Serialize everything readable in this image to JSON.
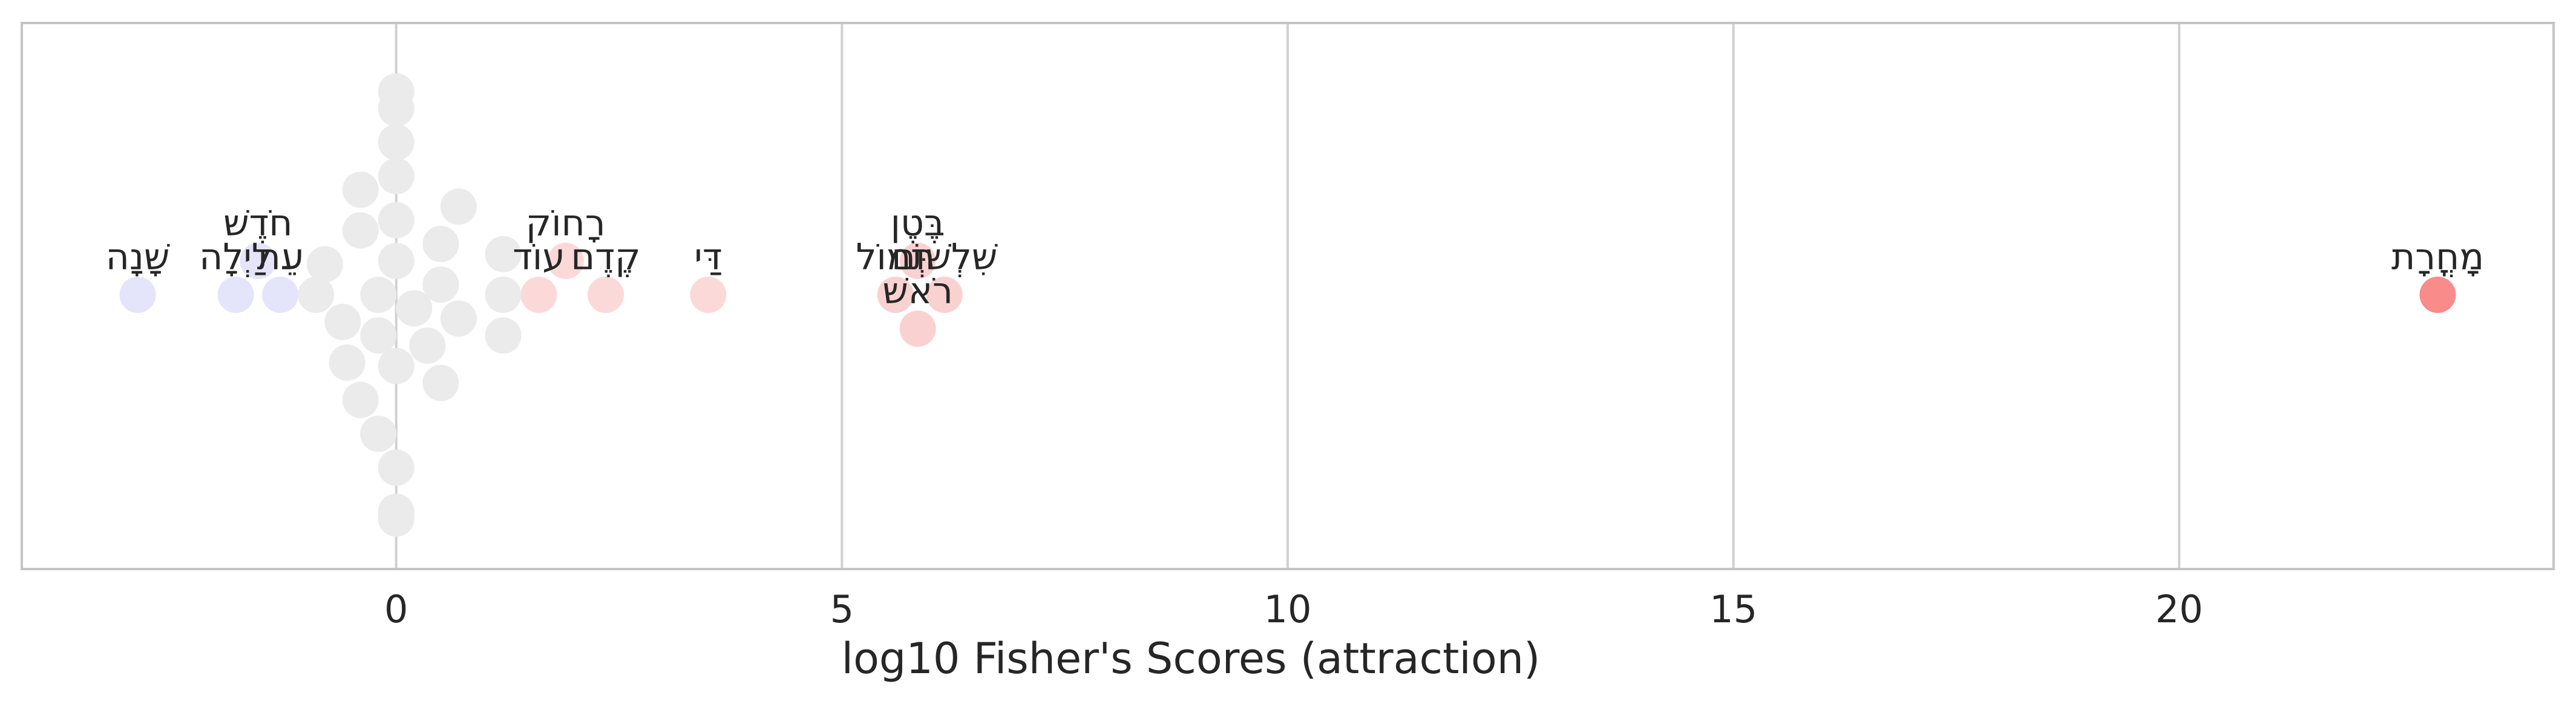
{
  "chart_data": {
    "type": "scatter",
    "subtype": "swarm",
    "title": "",
    "xlabel": "log10 Fisher's Scores (attraction)",
    "ylabel": "",
    "xlim": [
      -4.2,
      24.2
    ],
    "xticks": [
      0,
      5,
      10,
      15,
      20
    ],
    "grid": "vertical",
    "colors": {
      "neutral": "#ebebeb",
      "repulsion_light": "#e4e4fb",
      "attraction_light": "#fcd9d9",
      "attraction_mid": "#fad1d1",
      "attraction_strong": "#f98b8b",
      "grid": "#d0d0d0",
      "frame": "#c4c4c4"
    },
    "points": [
      {
        "x": -2.9,
        "band": 0,
        "color": "repulsion_light",
        "label": "שָׁנָה"
      },
      {
        "x": -1.8,
        "band": 0,
        "color": "repulsion_light",
        "label": "לַיְלָה"
      },
      {
        "x": -1.55,
        "band": 1,
        "color": "repulsion_light",
        "label": "חֹדֶשׁ"
      },
      {
        "x": -1.3,
        "band": 0,
        "color": "repulsion_light",
        "label": "עֵת"
      },
      {
        "x": 1.6,
        "band": 0,
        "color": "attraction_light",
        "label": "עוֹד"
      },
      {
        "x": 1.9,
        "band": 1,
        "color": "attraction_light",
        "label": "רָחוֹק"
      },
      {
        "x": 2.35,
        "band": 0,
        "color": "attraction_light",
        "label": "קֶדֶם"
      },
      {
        "x": 3.5,
        "band": 0,
        "color": "attraction_light",
        "label": "דַּי"
      },
      {
        "x": 5.6,
        "band": 0,
        "color": "attraction_mid",
        "label": "תְּמוֹל"
      },
      {
        "x": 5.85,
        "band": 1,
        "color": "attraction_mid",
        "label": "בֶּטֶן"
      },
      {
        "x": 5.85,
        "band": -1,
        "color": "attraction_mid",
        "label": "רֹאשׁ"
      },
      {
        "x": 6.15,
        "band": 0,
        "color": "attraction_mid",
        "label": "שִׁלְשׁוֹם"
      },
      {
        "x": 22.9,
        "band": 0,
        "color": "attraction_strong",
        "label": "מָחֳרָת"
      },
      {
        "x": 0,
        "band": 6,
        "color": "neutral",
        "label": ""
      },
      {
        "x": 0,
        "band": 5.5,
        "color": "neutral",
        "label": ""
      },
      {
        "x": 0,
        "band": 4.5,
        "color": "neutral",
        "label": ""
      },
      {
        "x": 0,
        "band": 3.5,
        "color": "neutral",
        "label": ""
      },
      {
        "x": 0,
        "band": 2.2,
        "color": "neutral",
        "label": ""
      },
      {
        "x": 0,
        "band": 1,
        "color": "neutral",
        "label": ""
      },
      {
        "x": -0.2,
        "band": 0,
        "color": "neutral",
        "label": ""
      },
      {
        "x": -0.2,
        "band": -1.2,
        "color": "neutral",
        "label": ""
      },
      {
        "x": 0,
        "band": -2.1,
        "color": "neutral",
        "label": ""
      },
      {
        "x": -0.2,
        "band": -4.1,
        "color": "neutral",
        "label": ""
      },
      {
        "x": 0,
        "band": -5.1,
        "color": "neutral",
        "label": ""
      },
      {
        "x": 0,
        "band": -6.4,
        "color": "neutral",
        "label": ""
      },
      {
        "x": 0,
        "band": -6.6,
        "color": "neutral",
        "label": ""
      },
      {
        "x": -0.4,
        "band": 3.1,
        "color": "neutral",
        "label": ""
      },
      {
        "x": -0.4,
        "band": 1.9,
        "color": "neutral",
        "label": ""
      },
      {
        "x": -0.6,
        "band": -0.8,
        "color": "neutral",
        "label": ""
      },
      {
        "x": -0.55,
        "band": -2.0,
        "color": "neutral",
        "label": ""
      },
      {
        "x": -0.4,
        "band": -3.1,
        "color": "neutral",
        "label": ""
      },
      {
        "x": -0.9,
        "band": 0,
        "color": "neutral",
        "label": ""
      },
      {
        "x": -0.8,
        "band": 0.9,
        "color": "neutral",
        "label": ""
      },
      {
        "x": 0.2,
        "band": -0.4,
        "color": "neutral",
        "label": ""
      },
      {
        "x": 0.35,
        "band": -1.5,
        "color": "neutral",
        "label": ""
      },
      {
        "x": 0.5,
        "band": 1.5,
        "color": "neutral",
        "label": ""
      },
      {
        "x": 0.5,
        "band": 0.3,
        "color": "neutral",
        "label": ""
      },
      {
        "x": 0.5,
        "band": -2.6,
        "color": "neutral",
        "label": ""
      },
      {
        "x": 0.7,
        "band": 2.6,
        "color": "neutral",
        "label": ""
      },
      {
        "x": 0.7,
        "band": -0.7,
        "color": "neutral",
        "label": ""
      },
      {
        "x": 1.2,
        "band": 1.2,
        "color": "neutral",
        "label": ""
      },
      {
        "x": 1.2,
        "band": 0,
        "color": "neutral",
        "label": ""
      },
      {
        "x": 1.2,
        "band": -1.2,
        "color": "neutral",
        "label": ""
      }
    ]
  }
}
